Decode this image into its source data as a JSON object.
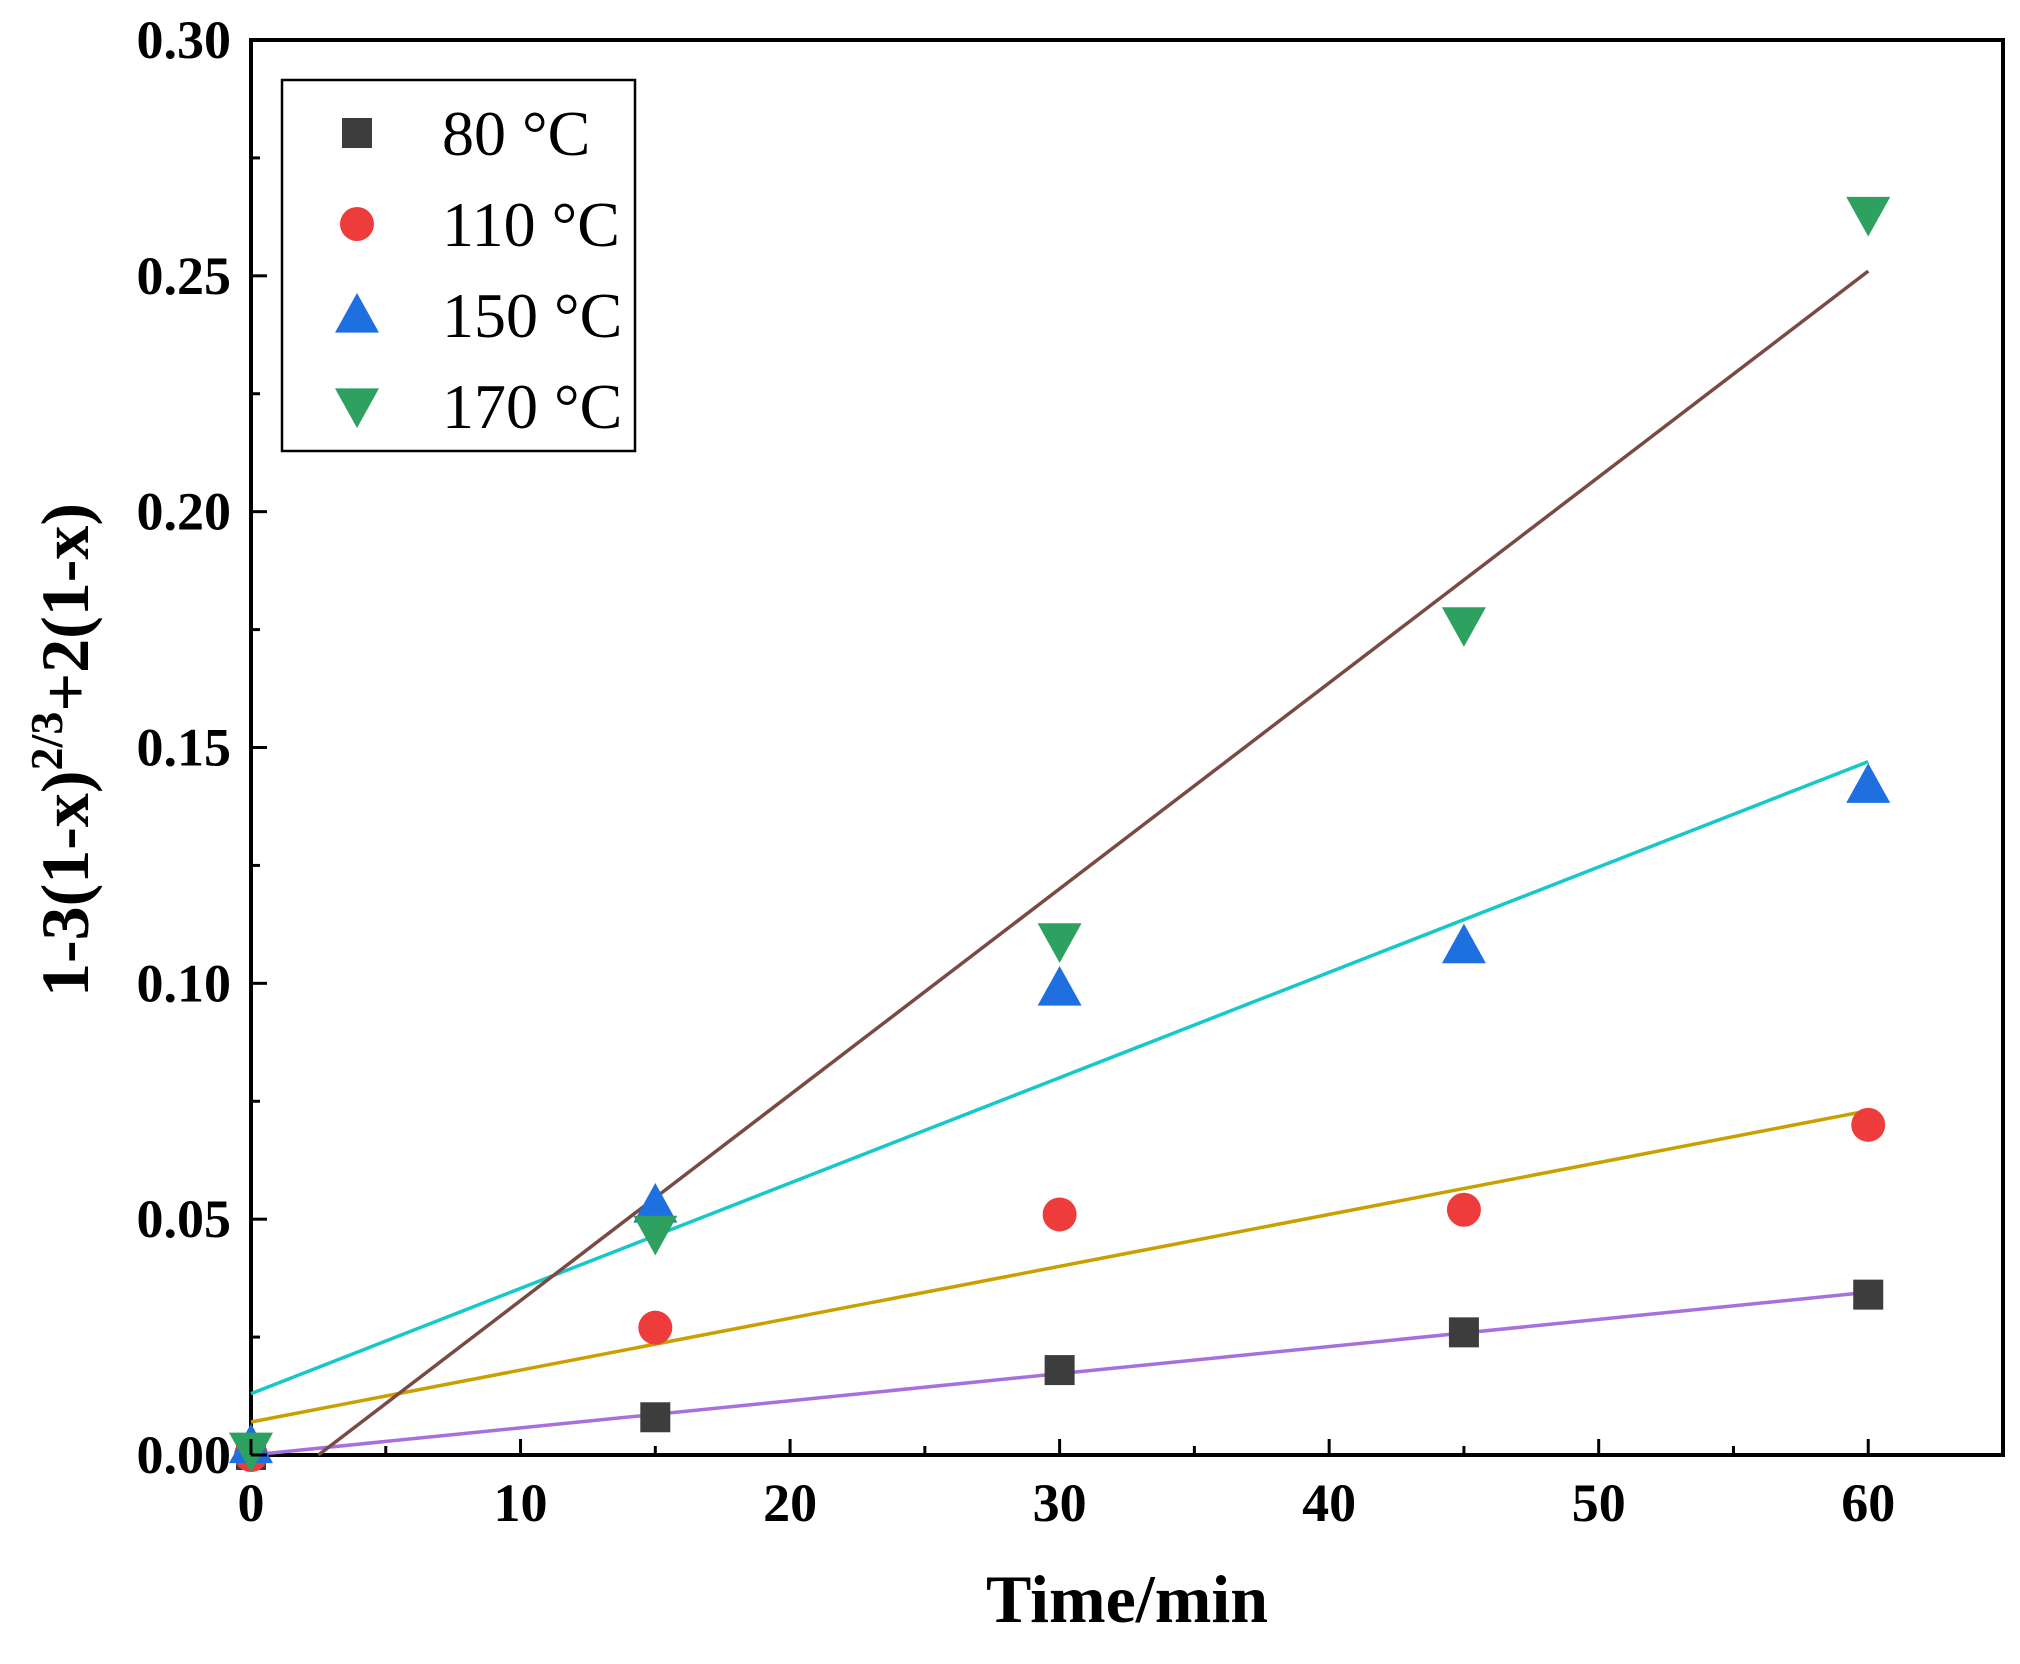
{
  "chart_data": {
    "type": "scatter",
    "title": "",
    "xlabel": "Time/min",
    "ylabel": {
      "part1": "1-3(1-x)",
      "sup": "2/3",
      "part2": "+2(1-x)"
    },
    "xlim": [
      0,
      65
    ],
    "ylim": [
      0,
      0.3
    ],
    "xticks": [
      0,
      10,
      20,
      30,
      40,
      50,
      60
    ],
    "xtick_labels": [
      "0",
      "10",
      "20",
      "30",
      "40",
      "50",
      "60"
    ],
    "yticks": [
      0,
      0.05,
      0.1,
      0.15,
      0.2,
      0.25,
      0.3
    ],
    "ytick_labels": [
      "0.00",
      "0.05",
      "0.10",
      "0.15",
      "0.20",
      "0.25",
      "0.30"
    ],
    "grid": false,
    "legend_position": "top-left",
    "series": [
      {
        "name": "80 °C",
        "marker": "square",
        "color": "#3d3d3d",
        "x": [
          0,
          15,
          30,
          45,
          60
        ],
        "y": [
          0.0,
          0.008,
          0.018,
          0.026,
          0.034
        ],
        "fit": {
          "color": "#a86fde",
          "x": [
            0,
            60
          ],
          "y": [
            0.0,
            0.0345
          ]
        }
      },
      {
        "name": "110 °C",
        "marker": "circle",
        "color": "#ee3b3b",
        "x": [
          0,
          15,
          30,
          45,
          60
        ],
        "y": [
          0.0,
          0.027,
          0.051,
          0.052,
          0.07
        ],
        "fit": {
          "color": "#c9a000",
          "x": [
            0,
            60
          ],
          "y": [
            0.007,
            0.073
          ]
        }
      },
      {
        "name": "150 °C",
        "marker": "triangle-up",
        "color": "#1e6fe0",
        "x": [
          0,
          15,
          30,
          45,
          60
        ],
        "y": [
          0.002,
          0.053,
          0.099,
          0.108,
          0.142
        ],
        "fit": {
          "color": "#17c8c8",
          "x": [
            0,
            60
          ],
          "y": [
            0.013,
            0.147
          ]
        }
      },
      {
        "name": "170 °C",
        "marker": "triangle-down",
        "color": "#2ea060",
        "x": [
          0,
          15,
          30,
          45,
          60
        ],
        "y": [
          0.001,
          0.047,
          0.109,
          0.176,
          0.263
        ],
        "fit": {
          "color": "#7a4a44",
          "x": [
            2.5,
            60
          ],
          "y": [
            0.0,
            0.251
          ]
        }
      }
    ]
  }
}
